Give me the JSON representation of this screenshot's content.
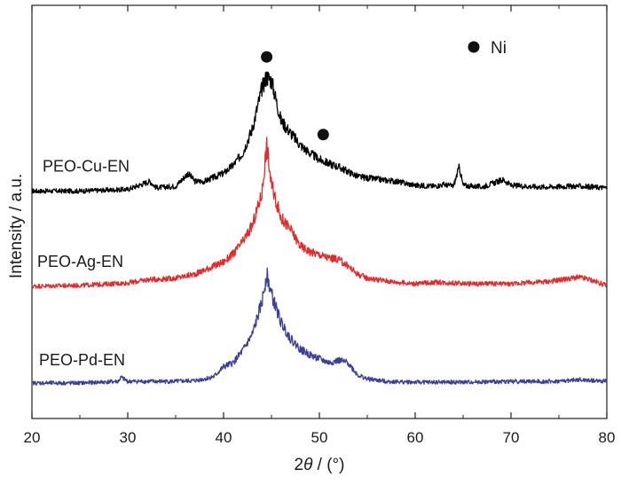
{
  "chart_data": {
    "type": "line",
    "title": "",
    "xlabel_prefix": "2",
    "xlabel_symbol": "θ",
    "xlabel_suffix": " / (°)",
    "ylabel": "Intensity / a.u.",
    "xlim": [
      20,
      80
    ],
    "x_ticks": [
      20,
      30,
      40,
      50,
      60,
      70,
      80
    ],
    "y_ticks_shown": false,
    "legend": {
      "symbol": "filled-circle",
      "label": "Ni",
      "position": "top-right"
    },
    "peak_markers": [
      {
        "phase": "Ni",
        "x": 44.5
      },
      {
        "phase": "Ni",
        "x": 50.4
      }
    ],
    "series": [
      {
        "name": "PEO-Cu-EN",
        "color": "#000000",
        "offset": 2.3,
        "points": [
          [
            20,
            0.08
          ],
          [
            25,
            0.08
          ],
          [
            30,
            0.1
          ],
          [
            32.3,
            0.2
          ],
          [
            33,
            0.12
          ],
          [
            35,
            0.14
          ],
          [
            36.3,
            0.3
          ],
          [
            37,
            0.2
          ],
          [
            38,
            0.2
          ],
          [
            40,
            0.3
          ],
          [
            41,
            0.4
          ],
          [
            42,
            0.55
          ],
          [
            43,
            0.85
          ],
          [
            44,
            1.35
          ],
          [
            44.5,
            1.5
          ],
          [
            45,
            1.45
          ],
          [
            46,
            0.95
          ],
          [
            47,
            0.8
          ],
          [
            48,
            0.65
          ],
          [
            49,
            0.55
          ],
          [
            50,
            0.47
          ],
          [
            51,
            0.42
          ],
          [
            52,
            0.38
          ],
          [
            53,
            0.32
          ],
          [
            54,
            0.26
          ],
          [
            55,
            0.24
          ],
          [
            58,
            0.2
          ],
          [
            60,
            0.15
          ],
          [
            62,
            0.14
          ],
          [
            63,
            0.16
          ],
          [
            64,
            0.14
          ],
          [
            64.6,
            0.38
          ],
          [
            65,
            0.15
          ],
          [
            67,
            0.13
          ],
          [
            69.2,
            0.22
          ],
          [
            70,
            0.15
          ],
          [
            73,
            0.13
          ],
          [
            77,
            0.14
          ],
          [
            80,
            0.12
          ]
        ]
      },
      {
        "name": "PEO-Ag-EN",
        "color": "#e42a2a",
        "offset": 1.15,
        "points": [
          [
            20,
            0.05
          ],
          [
            25,
            0.06
          ],
          [
            30,
            0.09
          ],
          [
            32,
            0.13
          ],
          [
            35,
            0.15
          ],
          [
            37,
            0.2
          ],
          [
            38,
            0.25
          ],
          [
            39,
            0.3
          ],
          [
            40,
            0.35
          ],
          [
            41,
            0.45
          ],
          [
            42,
            0.6
          ],
          [
            43,
            0.8
          ],
          [
            44,
            1.2
          ],
          [
            44.5,
            1.8
          ],
          [
            45,
            1.3
          ],
          [
            46,
            0.9
          ],
          [
            47,
            0.75
          ],
          [
            48,
            0.55
          ],
          [
            49,
            0.48
          ],
          [
            50,
            0.44
          ],
          [
            51,
            0.4
          ],
          [
            52,
            0.38
          ],
          [
            53,
            0.3
          ],
          [
            54,
            0.2
          ],
          [
            55,
            0.15
          ],
          [
            58,
            0.1
          ],
          [
            60,
            0.08
          ],
          [
            62,
            0.1
          ],
          [
            64,
            0.09
          ],
          [
            66,
            0.08
          ],
          [
            70,
            0.08
          ],
          [
            74,
            0.11
          ],
          [
            77,
            0.16
          ],
          [
            78,
            0.14
          ],
          [
            80,
            0.06
          ]
        ]
      },
      {
        "name": "PEO-Pd-EN",
        "color": "#3b3f9c",
        "offset": 0,
        "points": [
          [
            20,
            0.0
          ],
          [
            25,
            0.0
          ],
          [
            29,
            0.02
          ],
          [
            29.3,
            0.07
          ],
          [
            30,
            0.02
          ],
          [
            35,
            0.02
          ],
          [
            37,
            0.03
          ],
          [
            38,
            0.05
          ],
          [
            39,
            0.08
          ],
          [
            40,
            0.2
          ],
          [
            41,
            0.25
          ],
          [
            42,
            0.4
          ],
          [
            43,
            0.6
          ],
          [
            44,
            1.0
          ],
          [
            44.5,
            1.35
          ],
          [
            45,
            1.1
          ],
          [
            46,
            0.75
          ],
          [
            47,
            0.55
          ],
          [
            48,
            0.42
          ],
          [
            49,
            0.35
          ],
          [
            50,
            0.3
          ],
          [
            51,
            0.25
          ],
          [
            52,
            0.28
          ],
          [
            53,
            0.25
          ],
          [
            54,
            0.1
          ],
          [
            55,
            0.05
          ],
          [
            57,
            0.02
          ],
          [
            60,
            0.01
          ],
          [
            65,
            0.01
          ],
          [
            70,
            0.02
          ],
          [
            75,
            0.02
          ],
          [
            77,
            0.04
          ],
          [
            80,
            0.02
          ]
        ]
      }
    ]
  }
}
